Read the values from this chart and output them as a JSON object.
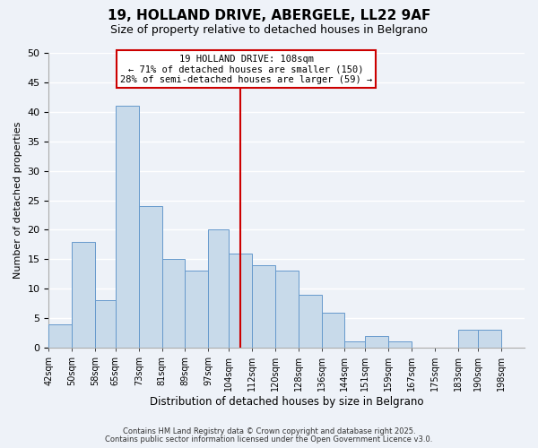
{
  "title": "19, HOLLAND DRIVE, ABERGELE, LL22 9AF",
  "subtitle": "Size of property relative to detached houses in Belgrano",
  "xlabel": "Distribution of detached houses by size in Belgrano",
  "ylabel": "Number of detached properties",
  "bar_color": "#c8daea",
  "bar_edge_color": "#6699cc",
  "background_color": "#eef2f8",
  "grid_color": "#ffffff",
  "categories": [
    "42sqm",
    "50sqm",
    "58sqm",
    "65sqm",
    "73sqm",
    "81sqm",
    "89sqm",
    "97sqm",
    "104sqm",
    "112sqm",
    "120sqm",
    "128sqm",
    "136sqm",
    "144sqm",
    "151sqm",
    "159sqm",
    "167sqm",
    "175sqm",
    "183sqm",
    "190sqm",
    "198sqm"
  ],
  "values": [
    4,
    18,
    8,
    41,
    24,
    15,
    13,
    20,
    16,
    14,
    13,
    9,
    6,
    1,
    2,
    1,
    0,
    0,
    3,
    3,
    0
  ],
  "ylim": [
    0,
    50
  ],
  "yticks": [
    0,
    5,
    10,
    15,
    20,
    25,
    30,
    35,
    40,
    45,
    50
  ],
  "property_line_x": 108,
  "bin_edges": [
    42,
    50,
    58,
    65,
    73,
    81,
    89,
    97,
    104,
    112,
    120,
    128,
    136,
    144,
    151,
    159,
    167,
    175,
    183,
    190,
    198,
    206
  ],
  "annotation_title": "19 HOLLAND DRIVE: 108sqm",
  "annotation_line1": "← 71% of detached houses are smaller (150)",
  "annotation_line2": "28% of semi-detached houses are larger (59) →",
  "annotation_box_color": "#ffffff",
  "annotation_box_edge_color": "#cc0000",
  "vline_color": "#cc0000",
  "footnote1": "Contains HM Land Registry data © Crown copyright and database right 2025.",
  "footnote2": "Contains public sector information licensed under the Open Government Licence v3.0."
}
